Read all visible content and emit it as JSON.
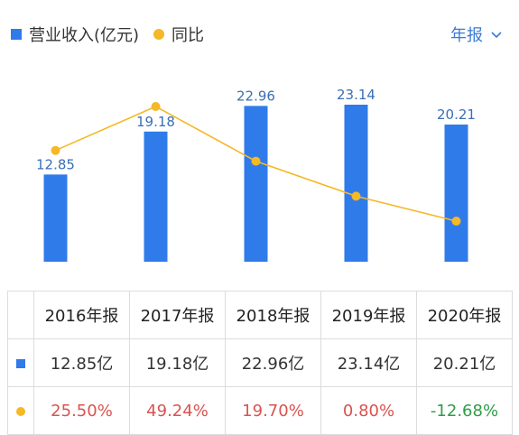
{
  "legend": {
    "revenue_label": "营业收入(亿元)",
    "yoy_label": "同比"
  },
  "period_selector": {
    "label": "年报"
  },
  "colors": {
    "bar": "#2f7bea",
    "line": "#f5b826",
    "bar_label": "#3a6fb5",
    "positive": "#d9534f",
    "negative": "#2e9e46"
  },
  "chart_data": {
    "type": "bar",
    "categories": [
      "2016年报",
      "2017年报",
      "2018年报",
      "2019年报",
      "2020年报"
    ],
    "series": [
      {
        "name": "营业收入(亿元)",
        "type": "bar",
        "values": [
          12.85,
          19.18,
          22.96,
          23.14,
          20.21
        ],
        "data_labels": [
          "12.85",
          "19.18",
          "22.96",
          "23.14",
          "20.21"
        ]
      },
      {
        "name": "同比",
        "type": "line",
        "values": [
          25.5,
          49.24,
          19.7,
          0.8,
          -12.68
        ]
      }
    ]
  },
  "table": {
    "headers": [
      "2016年报",
      "2017年报",
      "2018年报",
      "2019年报",
      "2020年报"
    ],
    "revenue_row": [
      "12.85亿",
      "19.18亿",
      "22.96亿",
      "23.14亿",
      "20.21亿"
    ],
    "yoy_row": [
      "25.50%",
      "49.24%",
      "19.70%",
      "0.80%",
      "-12.68%"
    ]
  }
}
